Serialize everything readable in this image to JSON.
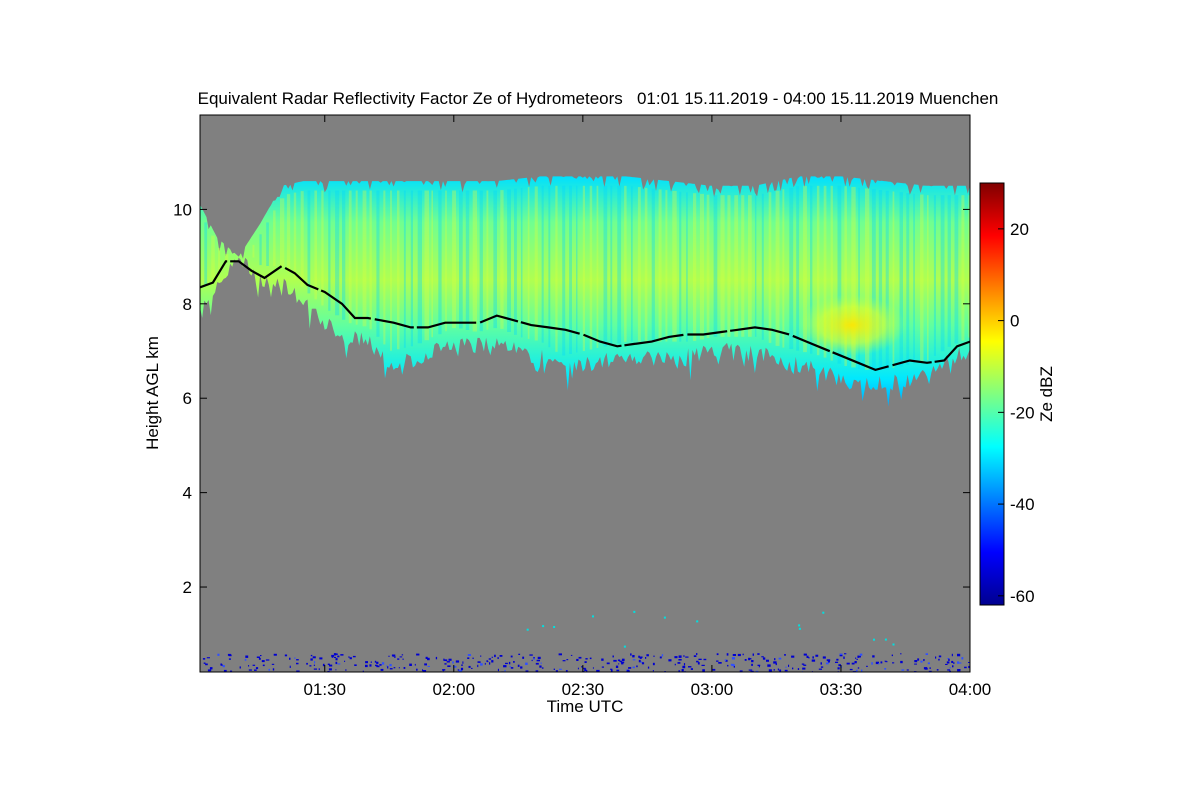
{
  "chart_data": {
    "type": "heatmap",
    "title": "Equivalent Radar Reflectivity Factor Ze of Hydrometeors   01:01 15.11.2019 - 04:00 15.11.2019 Muenchen",
    "xlabel": "Time UTC",
    "ylabel": "Height AGL km",
    "x_unit": "time",
    "xlim": [
      "01:01",
      "04:00"
    ],
    "xlim_minutes": [
      61,
      240
    ],
    "ylim": [
      0.2,
      12.0
    ],
    "x_ticks": [
      {
        "label": "01:30",
        "value": 90
      },
      {
        "label": "02:00",
        "value": 120
      },
      {
        "label": "02:30",
        "value": 150
      },
      {
        "label": "03:00",
        "value": 180
      },
      {
        "label": "03:30",
        "value": 210
      },
      {
        "label": "04:00",
        "value": 240
      }
    ],
    "y_ticks": [
      {
        "label": "2",
        "value": 2
      },
      {
        "label": "4",
        "value": 4
      },
      {
        "label": "6",
        "value": 6
      },
      {
        "label": "8",
        "value": 8
      },
      {
        "label": "10",
        "value": 10
      }
    ],
    "background_color": "#808080",
    "colorbar": {
      "label": "Ze dBZ",
      "range": [
        -62,
        30
      ],
      "ticks": [
        {
          "label": "-60",
          "value": -60
        },
        {
          "label": "-40",
          "value": -40
        },
        {
          "label": "-20",
          "value": -20
        },
        {
          "label": "0",
          "value": 0
        },
        {
          "label": "20",
          "value": 20
        }
      ],
      "colormap": "jet",
      "colors": [
        "#00008f",
        "#0000ff",
        "#0080ff",
        "#00ffff",
        "#80ff80",
        "#ffff00",
        "#ff8000",
        "#ff0000",
        "#800000"
      ]
    },
    "cloud_layer": {
      "description_color": "#00e0ff",
      "top_km": [
        [
          61,
          10.1
        ],
        [
          65,
          9.4
        ],
        [
          70,
          9.0
        ],
        [
          75,
          9.7
        ],
        [
          80,
          10.5
        ],
        [
          85,
          10.6
        ],
        [
          90,
          10.6
        ],
        [
          100,
          10.6
        ],
        [
          110,
          10.6
        ],
        [
          120,
          10.6
        ],
        [
          130,
          10.6
        ],
        [
          140,
          10.7
        ],
        [
          150,
          10.7
        ],
        [
          160,
          10.7
        ],
        [
          170,
          10.6
        ],
        [
          180,
          10.5
        ],
        [
          190,
          10.5
        ],
        [
          200,
          10.7
        ],
        [
          210,
          10.7
        ],
        [
          220,
          10.6
        ],
        [
          230,
          10.5
        ],
        [
          240,
          10.5
        ]
      ],
      "base_km": [
        [
          61,
          8.0
        ],
        [
          65,
          8.4
        ],
        [
          70,
          9.0
        ],
        [
          75,
          8.5
        ],
        [
          80,
          8.5
        ],
        [
          85,
          8.0
        ],
        [
          90,
          7.6
        ],
        [
          95,
          7.3
        ],
        [
          100,
          7.2
        ],
        [
          105,
          6.7
        ],
        [
          110,
          6.8
        ],
        [
          115,
          7.0
        ],
        [
          120,
          7.2
        ],
        [
          125,
          7.1
        ],
        [
          130,
          7.2
        ],
        [
          135,
          7.0
        ],
        [
          140,
          6.9
        ],
        [
          145,
          6.6
        ],
        [
          150,
          6.7
        ],
        [
          155,
          6.8
        ],
        [
          160,
          6.9
        ],
        [
          165,
          6.9
        ],
        [
          170,
          6.9
        ],
        [
          175,
          6.9
        ],
        [
          180,
          7.0
        ],
        [
          185,
          7.0
        ],
        [
          190,
          7.0
        ],
        [
          195,
          6.8
        ],
        [
          200,
          6.7
        ],
        [
          205,
          6.6
        ],
        [
          210,
          6.4
        ],
        [
          215,
          6.3
        ],
        [
          220,
          6.3
        ],
        [
          225,
          6.4
        ],
        [
          230,
          6.5
        ],
        [
          235,
          6.8
        ],
        [
          240,
          7.0
        ]
      ],
      "core_ze_dbz": -12,
      "max_region": {
        "x": [
          200,
          225
        ],
        "y": [
          6.9,
          8.2
        ],
        "ze_dbz": 0
      }
    },
    "black_line_km": [
      [
        61,
        8.35
      ],
      [
        64,
        8.45
      ],
      [
        67,
        8.9
      ],
      [
        70,
        8.9
      ],
      [
        73,
        8.7
      ],
      [
        76,
        8.55
      ],
      [
        80,
        8.8
      ],
      [
        83,
        8.65
      ],
      [
        86,
        8.4
      ],
      [
        90,
        8.25
      ],
      [
        94,
        8.0
      ],
      [
        97,
        7.7
      ],
      [
        100,
        7.7
      ],
      [
        103,
        7.65
      ],
      [
        106,
        7.6
      ],
      [
        110,
        7.5
      ],
      [
        114,
        7.5
      ],
      [
        118,
        7.6
      ],
      [
        122,
        7.6
      ],
      [
        126,
        7.6
      ],
      [
        130,
        7.75
      ],
      [
        134,
        7.65
      ],
      [
        138,
        7.55
      ],
      [
        142,
        7.5
      ],
      [
        146,
        7.45
      ],
      [
        150,
        7.35
      ],
      [
        154,
        7.2
      ],
      [
        158,
        7.1
      ],
      [
        162,
        7.15
      ],
      [
        166,
        7.2
      ],
      [
        170,
        7.3
      ],
      [
        174,
        7.35
      ],
      [
        178,
        7.35
      ],
      [
        182,
        7.4
      ],
      [
        186,
        7.45
      ],
      [
        190,
        7.5
      ],
      [
        194,
        7.45
      ],
      [
        198,
        7.35
      ],
      [
        202,
        7.2
      ],
      [
        206,
        7.05
      ],
      [
        210,
        6.9
      ],
      [
        214,
        6.75
      ],
      [
        218,
        6.6
      ],
      [
        222,
        6.7
      ],
      [
        226,
        6.8
      ],
      [
        230,
        6.75
      ],
      [
        234,
        6.8
      ],
      [
        237,
        7.1
      ],
      [
        240,
        7.2
      ]
    ],
    "ground_clutter_top_km": 0.6,
    "legend": "colorbar-right"
  }
}
